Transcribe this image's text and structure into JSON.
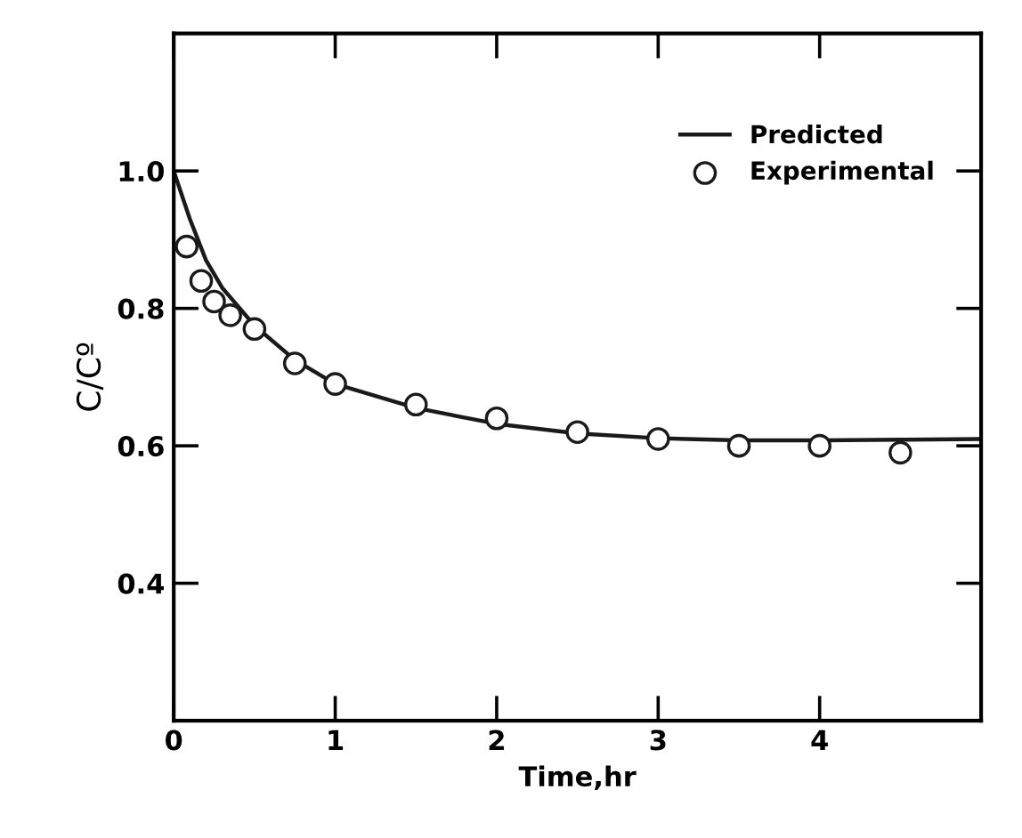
{
  "chart_data": {
    "type": "line",
    "xlabel": "Time,hr",
    "ylabel": "C/Cº",
    "xlim": [
      0,
      5
    ],
    "xticks": [
      0,
      1,
      2,
      3,
      4
    ],
    "ylim": [
      0.2,
      1.2
    ],
    "yticks": [
      {
        "value": 0.4,
        "label": "0.4"
      },
      {
        "value": 0.6,
        "label": "0.6"
      },
      {
        "value": 0.8,
        "label": "0.8"
      },
      {
        "value": 1.0,
        "label": "1.0"
      }
    ],
    "grid": false,
    "legend": "top right",
    "series": [
      {
        "name": "Predicted",
        "color": "#1a1a1a",
        "marker": "none",
        "line_style": "solid",
        "x": [
          0,
          0.1,
          0.2,
          0.3,
          0.5,
          0.75,
          1.0,
          1.5,
          2.0,
          2.5,
          3.0,
          3.5,
          4.0,
          4.5,
          5.0
        ],
        "values": [
          1.0,
          0.93,
          0.87,
          0.83,
          0.775,
          0.725,
          0.69,
          0.655,
          0.632,
          0.618,
          0.611,
          0.608,
          0.608,
          0.609,
          0.61
        ]
      },
      {
        "name": "Experimental",
        "type": "scatter",
        "color": "#1a1a1a",
        "marker": "circle",
        "x": [
          0.08,
          0.17,
          0.25,
          0.35,
          0.5,
          0.75,
          1.0,
          1.5,
          2.0,
          2.5,
          3.0,
          3.5,
          4.0,
          4.5
        ],
        "values": [
          0.89,
          0.84,
          0.81,
          0.79,
          0.77,
          0.72,
          0.69,
          0.66,
          0.64,
          0.62,
          0.61,
          0.6,
          0.6,
          0.59
        ]
      }
    ]
  }
}
